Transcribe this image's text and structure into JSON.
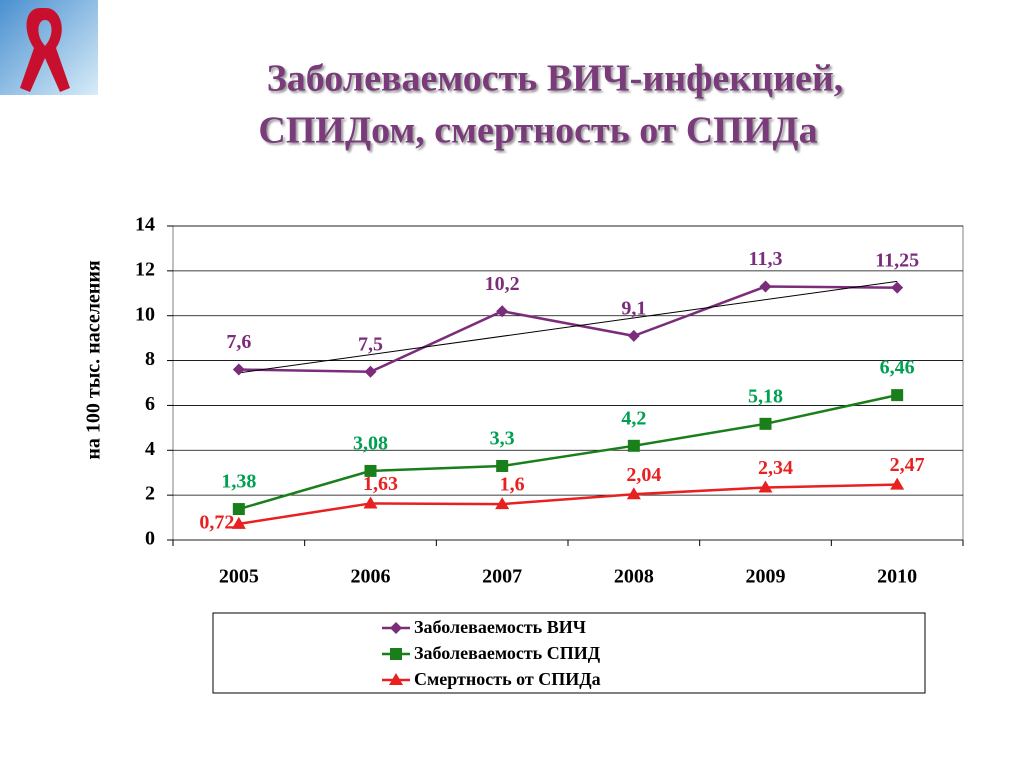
{
  "chart_data": {
    "type": "line",
    "title": [
      "Заболеваемость ВИЧ-инфекцией,",
      "СПИДом, смертность от СПИДа"
    ],
    "y_label": "на 100 тыс. населения",
    "categories": [
      "2005",
      "2006",
      "2007",
      "2008",
      "2009",
      "2010"
    ],
    "series": [
      {
        "name": "Заболеваемость ВИЧ",
        "color": "#7b2c7b",
        "marker": "diamond",
        "trendline": true,
        "values": [
          7.6,
          7.5,
          10.2,
          9.1,
          11.3,
          11.25
        ],
        "value_labels": [
          "7,6",
          "7,5",
          "10,2",
          "9,1",
          "11,3",
          "11,25"
        ]
      },
      {
        "name": "Заболеваемость СПИД",
        "color": "#1a7f1a",
        "marker": "square",
        "values": [
          1.38,
          3.08,
          3.3,
          4.2,
          5.18,
          6.46
        ],
        "value_labels": [
          "1,38",
          "3,08",
          "3,3",
          "4,2",
          "5,18",
          "6,46"
        ]
      },
      {
        "name": "Смертность от СПИДа",
        "color": "#e82020",
        "marker": "triangle",
        "values": [
          0.72,
          1.63,
          1.6,
          2.04,
          2.34,
          2.47
        ],
        "value_labels": [
          "0,72",
          "1,63",
          "1,6",
          "2,04",
          "2,34",
          "2,47"
        ]
      }
    ],
    "ylim": [
      0,
      14
    ],
    "yticks": [
      0,
      2,
      4,
      6,
      8,
      10,
      12,
      14
    ],
    "grid": true
  }
}
